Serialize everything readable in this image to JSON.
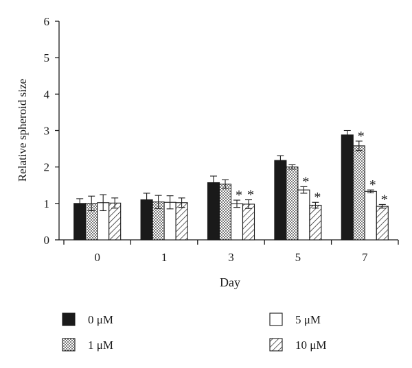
{
  "chart_data": {
    "type": "bar",
    "title": "",
    "xlabel": "Day",
    "ylabel": "Relative spheroid size",
    "categories": [
      "0",
      "1",
      "3",
      "5",
      "7"
    ],
    "ylim": [
      0,
      6
    ],
    "yticks": [
      "0",
      "1",
      "2",
      "3",
      "4",
      "5",
      "6"
    ],
    "grid": false,
    "legend_position": "bottom",
    "series": [
      {
        "name": "0 μM",
        "pattern": "solid",
        "values": [
          1.0,
          1.1,
          1.57,
          2.18,
          2.88
        ],
        "errors": [
          0.13,
          0.18,
          0.18,
          0.13,
          0.12
        ],
        "significant": [
          false,
          false,
          false,
          false,
          false
        ]
      },
      {
        "name": "1 μM",
        "pattern": "dotted",
        "values": [
          1.0,
          1.04,
          1.53,
          2.0,
          2.58
        ],
        "errors": [
          0.2,
          0.18,
          0.12,
          0.06,
          0.13
        ],
        "significant": [
          false,
          false,
          false,
          false,
          true
        ]
      },
      {
        "name": "5 μM",
        "pattern": "open",
        "values": [
          1.02,
          1.03,
          0.99,
          1.37,
          1.33
        ],
        "errors": [
          0.22,
          0.18,
          0.1,
          0.09,
          0.04
        ],
        "significant": [
          false,
          false,
          true,
          true,
          true
        ]
      },
      {
        "name": "10 μM",
        "pattern": "hatched",
        "values": [
          1.01,
          1.02,
          0.98,
          0.95,
          0.92
        ],
        "errors": [
          0.14,
          0.13,
          0.12,
          0.08,
          0.05
        ],
        "significant": [
          false,
          false,
          true,
          true,
          true
        ]
      }
    ],
    "annotation_symbol": "*"
  }
}
